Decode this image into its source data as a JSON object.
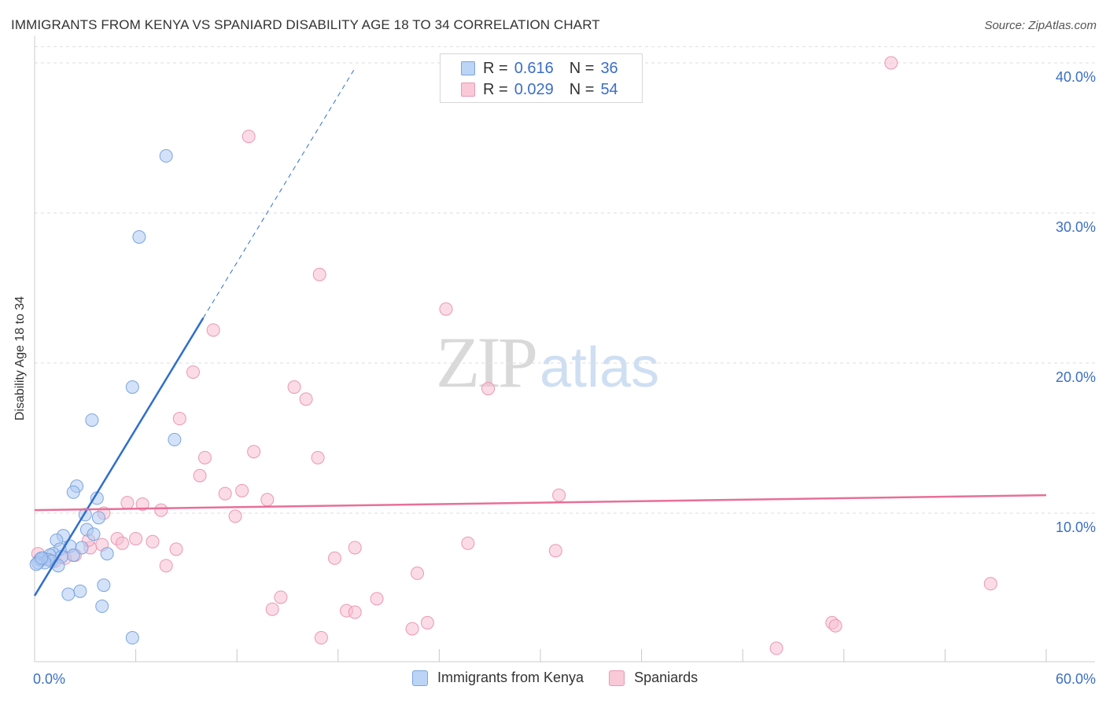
{
  "title": "IMMIGRANTS FROM KENYA VS SPANIARD DISABILITY AGE 18 TO 34 CORRELATION CHART",
  "source": "Source: ZipAtlas.com",
  "watermark": {
    "zip": "ZIP",
    "atlas": "atlas"
  },
  "legend_top": {
    "rows": [
      {
        "r_label": "R =",
        "r_value": "0.616",
        "n_label": "N =",
        "n_value": "36"
      },
      {
        "r_label": "R =",
        "r_value": "0.029",
        "n_label": "N =",
        "n_value": "54"
      }
    ]
  },
  "legend_bottom": [
    "Immigrants from Kenya",
    "Spaniards"
  ],
  "colors": {
    "kenya_fill": "#aecbf2",
    "kenya_stroke": "#7ca4de",
    "kenya_line": "#2f6fcc",
    "spain_fill": "#f7c0d1",
    "spain_stroke": "#eb97b2",
    "spain_line": "#e86f98",
    "axis_text": "#3b6fc4",
    "grid": "#dedede"
  },
  "chart_data": {
    "type": "scatter",
    "title": "IMMIGRANTS FROM KENYA VS SPANIARD DISABILITY AGE 18 TO 34 CORRELATION CHART",
    "xlabel": "",
    "ylabel": "Disability Age 18 to 34",
    "xlim": [
      0,
      60
    ],
    "ylim": [
      0,
      41.5
    ],
    "x_tick_labels": [
      "0.0%",
      "60.0%"
    ],
    "y_ticks": [
      10,
      20,
      30,
      40
    ],
    "y_tick_labels": [
      "10.0%",
      "20.0%",
      "30.0%",
      "40.0%"
    ],
    "series": [
      {
        "name": "Immigrants from Kenya",
        "r": 0.616,
        "n": 36,
        "trend": {
          "x0": 0,
          "y0": 4.5,
          "x1": 10,
          "y1": 23,
          "dash_to_x": 19
        },
        "points": [
          [
            7.8,
            33.8
          ],
          [
            6.2,
            28.4
          ],
          [
            5.8,
            18.4
          ],
          [
            3.4,
            16.2
          ],
          [
            8.3,
            14.9
          ],
          [
            2.5,
            11.8
          ],
          [
            2.3,
            11.4
          ],
          [
            3.7,
            11.0
          ],
          [
            3.0,
            9.9
          ],
          [
            3.8,
            9.7
          ],
          [
            3.1,
            8.9
          ],
          [
            3.5,
            8.6
          ],
          [
            1.7,
            8.5
          ],
          [
            1.3,
            8.2
          ],
          [
            2.1,
            7.8
          ],
          [
            1.5,
            7.6
          ],
          [
            2.8,
            7.7
          ],
          [
            1.1,
            7.3
          ],
          [
            0.9,
            7.2
          ],
          [
            4.3,
            7.3
          ],
          [
            2.3,
            7.2
          ],
          [
            0.5,
            7.0
          ],
          [
            1.6,
            7.1
          ],
          [
            0.3,
            6.9
          ],
          [
            0.8,
            6.9
          ],
          [
            1.0,
            6.8
          ],
          [
            0.6,
            6.7
          ],
          [
            0.2,
            6.7
          ],
          [
            1.4,
            6.5
          ],
          [
            0.1,
            6.6
          ],
          [
            4.1,
            5.2
          ],
          [
            2.7,
            4.8
          ],
          [
            2.0,
            4.6
          ],
          [
            4.0,
            3.8
          ],
          [
            5.8,
            1.7
          ],
          [
            0.4,
            7.0
          ]
        ]
      },
      {
        "name": "Spaniards",
        "r": 0.029,
        "n": 54,
        "trend": {
          "x0": 0,
          "y0": 10.2,
          "x1": 60,
          "y1": 11.2
        },
        "points": [
          [
            50.8,
            40.0
          ],
          [
            12.7,
            35.1
          ],
          [
            16.9,
            25.9
          ],
          [
            24.4,
            23.6
          ],
          [
            10.6,
            22.2
          ],
          [
            9.4,
            19.4
          ],
          [
            15.4,
            18.4
          ],
          [
            16.1,
            17.6
          ],
          [
            26.9,
            18.3
          ],
          [
            8.6,
            16.3
          ],
          [
            10.1,
            13.7
          ],
          [
            13.0,
            14.1
          ],
          [
            16.8,
            13.7
          ],
          [
            9.8,
            12.5
          ],
          [
            11.3,
            11.3
          ],
          [
            12.3,
            11.5
          ],
          [
            13.8,
            10.9
          ],
          [
            5.5,
            10.7
          ],
          [
            6.4,
            10.6
          ],
          [
            4.1,
            10.0
          ],
          [
            7.5,
            10.2
          ],
          [
            11.9,
            9.8
          ],
          [
            31.1,
            11.2
          ],
          [
            4.0,
            7.9
          ],
          [
            3.3,
            7.7
          ],
          [
            3.2,
            8.2
          ],
          [
            4.9,
            8.3
          ],
          [
            6.0,
            8.3
          ],
          [
            7.0,
            8.1
          ],
          [
            5.2,
            8.0
          ],
          [
            25.7,
            8.0
          ],
          [
            8.4,
            7.6
          ],
          [
            19.0,
            7.7
          ],
          [
            30.9,
            7.5
          ],
          [
            2.4,
            7.2
          ],
          [
            1.8,
            7.0
          ],
          [
            0.9,
            6.9
          ],
          [
            7.8,
            6.5
          ],
          [
            17.8,
            7.0
          ],
          [
            22.7,
            6.0
          ],
          [
            56.7,
            5.3
          ],
          [
            14.6,
            4.4
          ],
          [
            20.3,
            4.3
          ],
          [
            14.1,
            3.6
          ],
          [
            18.5,
            3.5
          ],
          [
            19.0,
            3.4
          ],
          [
            23.3,
            2.7
          ],
          [
            22.4,
            2.3
          ],
          [
            47.3,
            2.7
          ],
          [
            47.5,
            2.5
          ],
          [
            17.0,
            1.7
          ],
          [
            44.0,
            1.0
          ],
          [
            0.2,
            7.3
          ],
          [
            1.2,
            6.8
          ]
        ]
      }
    ]
  }
}
